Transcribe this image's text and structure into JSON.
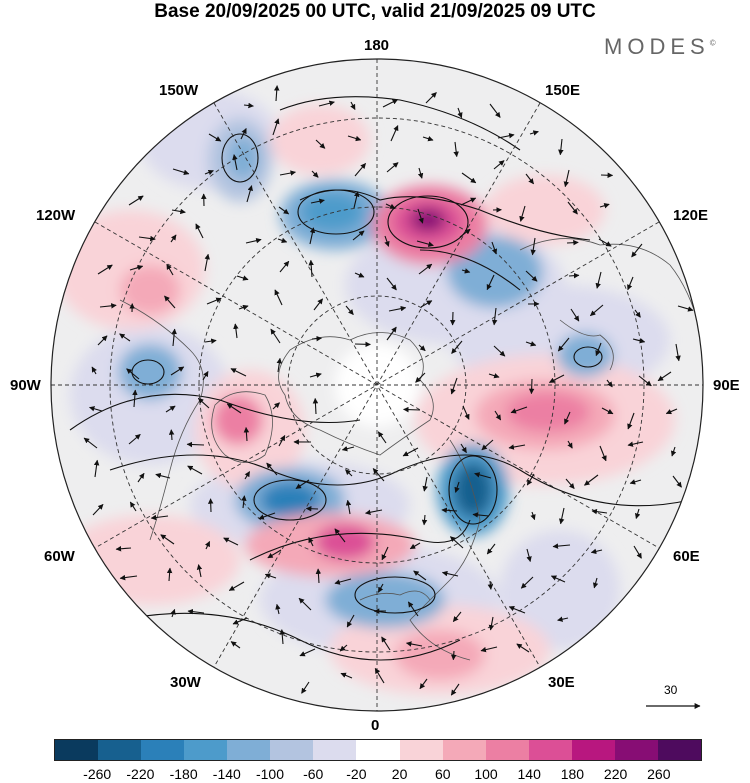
{
  "title": "Base 20/09/2025 00 UTC, valid 21/09/2025 09 UTC",
  "brand": "MODES",
  "brand_mark": "©",
  "meridian_labels": {
    "top": "180",
    "bottom": "0",
    "left": "90W",
    "right": "90E",
    "w150": "150W",
    "e150": "150E",
    "w120": "120W",
    "e120": "120E",
    "w60": "60W",
    "e60": "60E",
    "w30": "30W",
    "e30": "30E"
  },
  "reference_vector": "30",
  "colorbar": {
    "colors": [
      "#0a3a5e",
      "#17608f",
      "#2b80b9",
      "#4d9bcb",
      "#7faed6",
      "#b3c4e0",
      "#dcdcee",
      "#ffffff",
      "#f9d3d8",
      "#f4a9b8",
      "#ec7fa3",
      "#dc4f96",
      "#b8177f",
      "#870d74",
      "#4e0b5e"
    ],
    "ticks": [
      "-260",
      "-220",
      "-180",
      "-140",
      "-100",
      "-60",
      "-20",
      "20",
      "60",
      "100",
      "140",
      "180",
      "220",
      "260"
    ]
  }
}
